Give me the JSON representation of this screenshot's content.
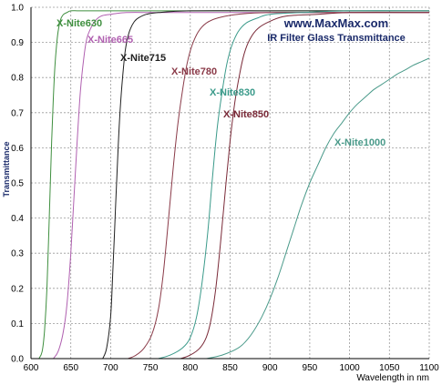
{
  "chart_data": {
    "type": "line",
    "title": "www.MaxMax.com",
    "subtitle": "IR Filter Glass Transmittance",
    "xlabel": "Wavelength in nm",
    "ylabel": "Transmittance",
    "xlim": [
      600,
      1100
    ],
    "ylim": [
      0,
      1
    ],
    "x_ticks": [
      600,
      650,
      700,
      750,
      800,
      850,
      900,
      950,
      1000,
      1050,
      1100
    ],
    "y_ticks": [
      "0.0",
      "0.1",
      "0.2",
      "0.3",
      "0.4",
      "0.5",
      "0.6",
      "0.7",
      "0.8",
      "0.9",
      "1.0"
    ],
    "grid": true,
    "series": [
      {
        "name": "X-Nite630",
        "color": "#3f8f3f",
        "x": [
          610,
          614,
          617,
          620,
          622,
          624,
          626,
          628,
          630,
          632,
          634,
          636,
          638,
          641,
          645,
          650,
          660,
          680,
          720,
          800,
          900,
          1000,
          1100
        ],
        "y": [
          0,
          0.02,
          0.08,
          0.2,
          0.33,
          0.48,
          0.62,
          0.74,
          0.83,
          0.89,
          0.93,
          0.955,
          0.97,
          0.98,
          0.985,
          0.99,
          0.99,
          0.99,
          0.99,
          0.99,
          0.99,
          0.99,
          0.99
        ]
      },
      {
        "name": "X-Nite665",
        "color": "#b060b0",
        "x": [
          628,
          634,
          640,
          645,
          650,
          654,
          658,
          662,
          666,
          670,
          675,
          680,
          688,
          700,
          720,
          760,
          850,
          1000,
          1100
        ],
        "y": [
          0,
          0.02,
          0.07,
          0.15,
          0.3,
          0.46,
          0.62,
          0.76,
          0.85,
          0.91,
          0.94,
          0.96,
          0.975,
          0.98,
          0.985,
          0.985,
          0.985,
          0.985,
          0.985
        ]
      },
      {
        "name": "X-Nite715",
        "color": "#202020",
        "x": [
          690,
          695,
          700,
          703,
          706,
          709,
          712,
          715,
          718,
          721,
          725,
          730,
          735,
          745,
          760,
          800,
          900,
          1000,
          1100
        ],
        "y": [
          0,
          0.03,
          0.12,
          0.26,
          0.42,
          0.58,
          0.71,
          0.8,
          0.87,
          0.91,
          0.94,
          0.96,
          0.97,
          0.98,
          0.985,
          0.99,
          0.99,
          0.99,
          0.99
        ]
      },
      {
        "name": "X-Nite780",
        "color": "#8a3a48",
        "x": [
          722,
          732,
          742,
          752,
          760,
          766,
          772,
          778,
          784,
          790,
          796,
          802,
          810,
          820,
          835,
          860,
          900,
          1000,
          1100
        ],
        "y": [
          0,
          0.01,
          0.03,
          0.07,
          0.14,
          0.24,
          0.38,
          0.53,
          0.66,
          0.76,
          0.84,
          0.89,
          0.93,
          0.955,
          0.97,
          0.98,
          0.985,
          0.985,
          0.985
        ]
      },
      {
        "name": "X-Nite830",
        "color": "#3a9a8a",
        "x": [
          760,
          775,
          790,
          800,
          808,
          815,
          822,
          828,
          834,
          840,
          846,
          852,
          860,
          870,
          885,
          900,
          940,
          1000,
          1100
        ],
        "y": [
          0,
          0.01,
          0.03,
          0.06,
          0.12,
          0.22,
          0.36,
          0.52,
          0.66,
          0.76,
          0.84,
          0.89,
          0.93,
          0.955,
          0.97,
          0.98,
          0.985,
          0.99,
          0.99
        ]
      },
      {
        "name": "X-Nite850",
        "color": "#7a2a38",
        "x": [
          788,
          800,
          812,
          820,
          826,
          832,
          838,
          844,
          850,
          856,
          862,
          868,
          875,
          885,
          900,
          920,
          960,
          1000,
          1100
        ],
        "y": [
          0,
          0.01,
          0.03,
          0.06,
          0.11,
          0.2,
          0.33,
          0.48,
          0.62,
          0.73,
          0.81,
          0.87,
          0.91,
          0.94,
          0.96,
          0.975,
          0.98,
          0.985,
          0.985
        ]
      },
      {
        "name": "X-Nite1000",
        "color": "#4a9a8a",
        "x": [
          820,
          840,
          860,
          870,
          880,
          890,
          900,
          910,
          920,
          930,
          940,
          950,
          960,
          970,
          980,
          990,
          1000,
          1010,
          1020,
          1030,
          1040,
          1050,
          1060,
          1070,
          1080,
          1090,
          1100
        ],
        "y": [
          0,
          0.01,
          0.03,
          0.05,
          0.08,
          0.12,
          0.17,
          0.23,
          0.3,
          0.37,
          0.44,
          0.5,
          0.55,
          0.6,
          0.64,
          0.67,
          0.7,
          0.725,
          0.745,
          0.765,
          0.78,
          0.795,
          0.81,
          0.822,
          0.835,
          0.845,
          0.855
        ]
      }
    ]
  }
}
